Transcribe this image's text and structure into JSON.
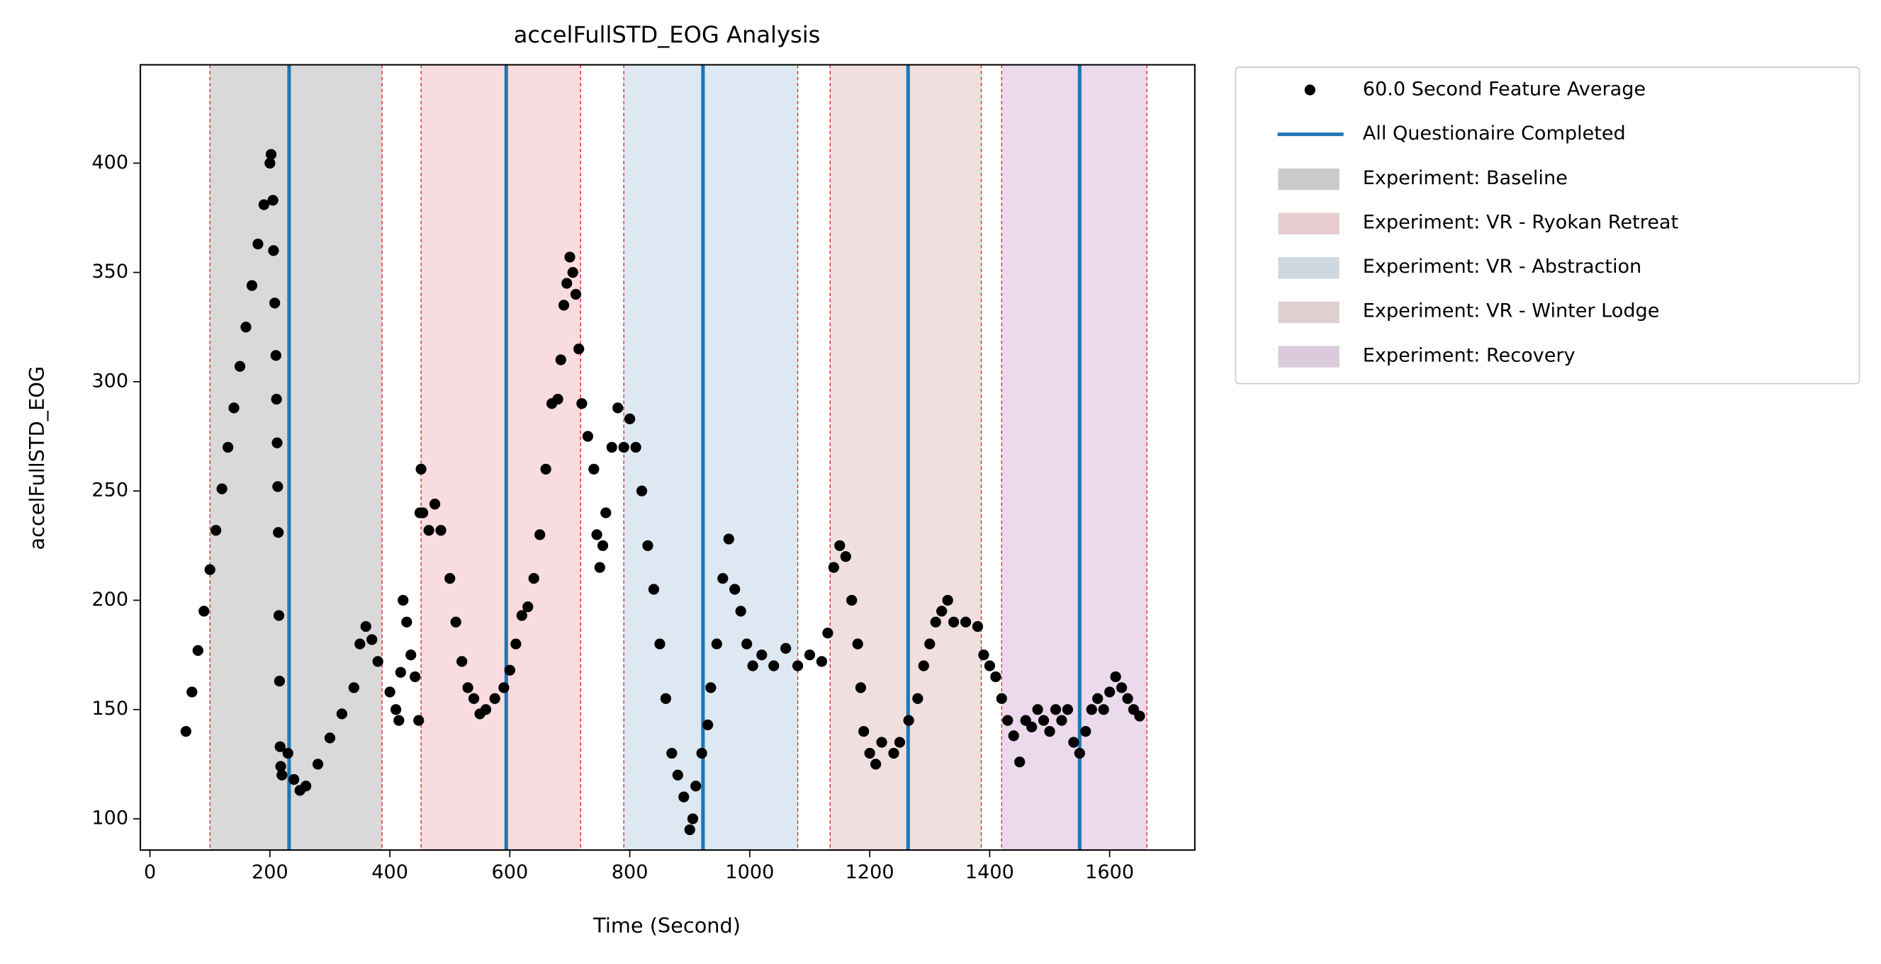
{
  "chart_data": {
    "type": "scatter",
    "title": "accelFullSTD_EOG Analysis",
    "x_label": "Time (Second)",
    "y_label": "accelFullSTD_EOG",
    "xlim": [
      -16,
      1742
    ],
    "ylim": [
      85.7,
      445
    ],
    "xticks": [
      0,
      200,
      400,
      600,
      800,
      1000,
      1200,
      1400,
      1600
    ],
    "yticks": [
      100,
      150,
      200,
      250,
      300,
      350,
      400
    ],
    "legend": "outside-upper-right",
    "x": [
      60,
      70,
      80,
      90,
      100,
      110,
      120,
      130,
      140,
      150,
      160,
      170,
      180,
      190,
      200,
      202,
      205,
      206,
      208,
      210,
      211,
      212,
      213,
      214,
      215,
      216,
      217,
      218,
      220,
      230,
      240,
      250,
      260,
      280,
      300,
      320,
      340,
      350,
      360,
      370,
      380,
      400,
      410,
      415,
      418,
      422,
      428,
      435,
      442,
      448,
      450,
      452,
      455,
      465,
      475,
      485,
      500,
      510,
      520,
      530,
      540,
      550,
      560,
      575,
      590,
      600,
      610,
      620,
      630,
      640,
      650,
      660,
      670,
      680,
      685,
      690,
      695,
      700,
      705,
      710,
      715,
      720,
      730,
      740,
      745,
      750,
      755,
      760,
      770,
      780,
      790,
      800,
      810,
      820,
      830,
      840,
      850,
      860,
      870,
      880,
      890,
      900,
      905,
      910,
      920,
      930,
      935,
      945,
      955,
      965,
      975,
      985,
      995,
      1005,
      1020,
      1040,
      1060,
      1080,
      1100,
      1120,
      1130,
      1140,
      1150,
      1160,
      1170,
      1180,
      1185,
      1190,
      1200,
      1210,
      1220,
      1240,
      1250,
      1265,
      1280,
      1290,
      1300,
      1310,
      1320,
      1330,
      1340,
      1360,
      1380,
      1390,
      1400,
      1410,
      1420,
      1430,
      1440,
      1450,
      1460,
      1470,
      1480,
      1490,
      1500,
      1510,
      1520,
      1530,
      1540,
      1550,
      1560,
      1570,
      1580,
      1590,
      1600,
      1610,
      1620,
      1630,
      1640,
      1650
    ],
    "series": [
      {
        "name": "60.0 Second Feature Average",
        "color": "#000000",
        "values": [
          140,
          158,
          177,
          195,
          214,
          232,
          251,
          270,
          288,
          307,
          325,
          344,
          363,
          381,
          400,
          404,
          383,
          360,
          336,
          312,
          292,
          272,
          252,
          231,
          193,
          163,
          133,
          124,
          120,
          130,
          118,
          113,
          115,
          125,
          137,
          148,
          160,
          180,
          188,
          182,
          172,
          158,
          150,
          145,
          167,
          200,
          190,
          175,
          165,
          145,
          240,
          260,
          240,
          232,
          244,
          232,
          210,
          190,
          172,
          160,
          155,
          148,
          150,
          155,
          160,
          168,
          180,
          193,
          197,
          210,
          230,
          260,
          290,
          292,
          310,
          335,
          345,
          357,
          350,
          340,
          315,
          290,
          275,
          260,
          230,
          215,
          225,
          240,
          270,
          288,
          270,
          283,
          270,
          250,
          225,
          205,
          180,
          155,
          130,
          120,
          110,
          95,
          100,
          115,
          130,
          143,
          160,
          180,
          210,
          228,
          205,
          195,
          180,
          170,
          175,
          170,
          178,
          170,
          175,
          172,
          185,
          215,
          225,
          220,
          200,
          180,
          160,
          140,
          130,
          125,
          135,
          130,
          135,
          145,
          155,
          170,
          180,
          190,
          195,
          200,
          190,
          190,
          188,
          175,
          170,
          165,
          155,
          145,
          138,
          126,
          145,
          142,
          150,
          145,
          140,
          150,
          145,
          150,
          135,
          130,
          140,
          150,
          155,
          150,
          158,
          165,
          160,
          155,
          150,
          147
        ]
      }
    ],
    "vlines": {
      "name": "All Questionaire Completed",
      "color": "#1f77b4",
      "x": [
        232,
        594,
        922,
        1264,
        1550
      ]
    },
    "spans": [
      {
        "name": "Experiment: Baseline",
        "color": "#d9d9d9",
        "ranges": [
          [
            100,
            387
          ]
        ]
      },
      {
        "name": "Experiment: VR - Ryokan Retreat",
        "color": "#f8dcdf",
        "ranges": [
          [
            452,
            718
          ]
        ]
      },
      {
        "name": "Experiment: VR - Abstraction",
        "color": "#dde8f2",
        "ranges": [
          [
            790,
            1080
          ]
        ]
      },
      {
        "name": "Experiment: VR - Winter Lodge",
        "color": "#f0dfdf",
        "ranges": [
          [
            1134,
            1386
          ]
        ]
      },
      {
        "name": "Experiment: Recovery",
        "color": "#ebd9ec",
        "ranges": [
          [
            1420,
            1662
          ]
        ]
      }
    ]
  }
}
